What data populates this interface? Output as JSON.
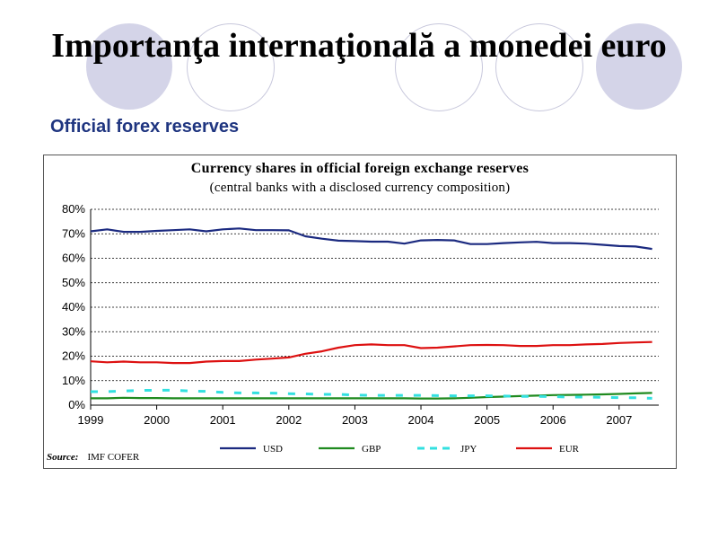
{
  "slide": {
    "title": "Importanţa internaţională a monedei euro",
    "subtitle": "Official forex reserves"
  },
  "chart_data": {
    "type": "line",
    "title": "Currency shares in official foreign exchange reserves",
    "subtitle": "(central banks with a disclosed currency composition)",
    "xlim": [
      1999,
      2007.6
    ],
    "ylim": [
      0,
      80
    ],
    "x_ticks": [
      1999,
      2000,
      2001,
      2002,
      2003,
      2004,
      2005,
      2006,
      2007
    ],
    "x_tick_labels": [
      "1999",
      "2000",
      "2001",
      "2002",
      "2003",
      "2004",
      "2005",
      "2006",
      "2007"
    ],
    "y_ticks": [
      0,
      10,
      20,
      30,
      40,
      50,
      60,
      70,
      80
    ],
    "y_tick_labels": [
      "0%",
      "10%",
      "20%",
      "30%",
      "40%",
      "50%",
      "60%",
      "70%",
      "80%"
    ],
    "grid": "horizontal-dashed",
    "legend_position": "bottom",
    "x": [
      1999,
      1999.25,
      1999.5,
      1999.75,
      2000,
      2000.25,
      2000.5,
      2000.75,
      2001,
      2001.25,
      2001.5,
      2001.75,
      2002,
      2002.25,
      2002.5,
      2002.75,
      2003,
      2003.25,
      2003.5,
      2003.75,
      2004,
      2004.25,
      2004.5,
      2004.75,
      2005,
      2005.25,
      2005.5,
      2005.75,
      2006,
      2006.25,
      2006.5,
      2006.75,
      2007,
      2007.25,
      2007.5
    ],
    "series": [
      {
        "name": "USD",
        "color": "#1b2a80",
        "style": "solid",
        "values": [
          71.0,
          71.8,
          70.8,
          70.8,
          71.2,
          71.5,
          71.8,
          71.0,
          71.8,
          72.2,
          71.5,
          71.5,
          71.4,
          69.0,
          68.0,
          67.2,
          67.0,
          66.8,
          66.8,
          66.0,
          67.3,
          67.5,
          67.3,
          65.8,
          65.8,
          66.2,
          66.5,
          66.7,
          66.2,
          66.2,
          66.0,
          65.5,
          65.0,
          64.8,
          63.8
        ]
      },
      {
        "name": "GBP",
        "color": "#1f8a1f",
        "style": "solid",
        "values": [
          2.8,
          2.8,
          3.0,
          2.9,
          2.9,
          2.8,
          2.8,
          2.8,
          2.8,
          2.8,
          2.8,
          2.8,
          2.8,
          2.8,
          2.8,
          2.8,
          2.8,
          2.8,
          2.8,
          2.8,
          2.7,
          2.7,
          2.8,
          3.0,
          3.3,
          3.5,
          3.7,
          3.9,
          4.1,
          4.2,
          4.3,
          4.4,
          4.6,
          4.8,
          5.0
        ]
      },
      {
        "name": "JPY",
        "color": "#33e0e0",
        "style": "dashed",
        "values": [
          5.5,
          5.5,
          5.8,
          6.0,
          6.1,
          6.1,
          5.8,
          5.6,
          5.2,
          5.0,
          5.0,
          4.9,
          4.7,
          4.6,
          4.4,
          4.4,
          4.1,
          4.0,
          4.0,
          4.0,
          4.0,
          3.9,
          3.8,
          3.8,
          3.8,
          3.7,
          3.6,
          3.6,
          3.5,
          3.3,
          3.3,
          3.2,
          3.1,
          3.0,
          2.8
        ]
      },
      {
        "name": "EUR",
        "color": "#dd1111",
        "style": "solid",
        "values": [
          17.9,
          17.5,
          17.8,
          17.5,
          17.5,
          17.2,
          17.2,
          17.8,
          18.0,
          18.0,
          18.6,
          19.0,
          19.5,
          21.0,
          22.0,
          23.5,
          24.5,
          24.8,
          24.5,
          24.5,
          23.3,
          23.5,
          24.0,
          24.5,
          24.6,
          24.5,
          24.2,
          24.2,
          24.5,
          24.5,
          24.8,
          25.0,
          25.4,
          25.6,
          25.8
        ]
      }
    ]
  },
  "source": {
    "label": "Source:",
    "text": "IMF COFER"
  }
}
